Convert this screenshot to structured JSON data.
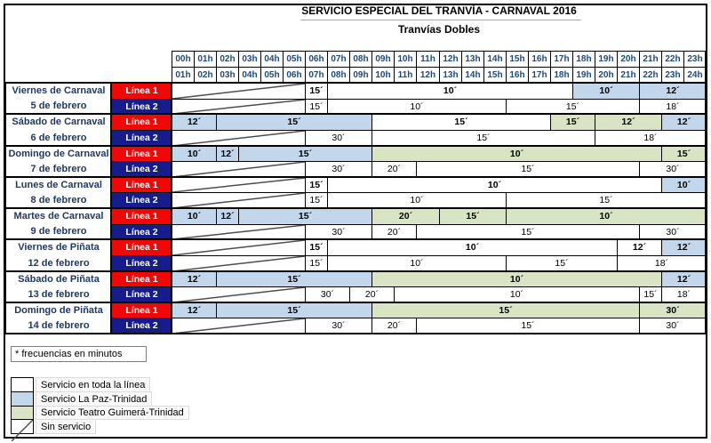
{
  "title": "SERVICIO ESPECIAL DEL TRANVÍA - CARNAVAL 2016",
  "subtitle": "Tranvías Dobles",
  "footnote": "* frecuencias en minutos",
  "hours": {
    "top": [
      "00h",
      "01h",
      "02h",
      "03h",
      "04h",
      "05h",
      "06h",
      "07h",
      "08h",
      "09h",
      "10h",
      "11h",
      "12h",
      "13h",
      "14h",
      "15h",
      "16h",
      "17h",
      "18h",
      "19h",
      "20h",
      "21h",
      "22h",
      "23h"
    ],
    "bottom": [
      "01h",
      "02h",
      "03h",
      "04h",
      "05h",
      "06h",
      "07h",
      "08h",
      "09h",
      "10h",
      "11h",
      "12h",
      "13h",
      "14h",
      "15h",
      "16h",
      "17h",
      "18h",
      "19h",
      "20h",
      "21h",
      "22h",
      "23h",
      "24h"
    ]
  },
  "line_labels": [
    "Línea 1",
    "Línea 2"
  ],
  "colors": {
    "line1_bg": "#f20707",
    "line2_bg": "#161c8c",
    "service_full": "#ffffff",
    "service_paz": "#c2d6ec",
    "service_guimera": "#d9e4c4",
    "no_service_line": "#4d4d4d",
    "hour_text": "#1f497d",
    "day_text": "#1f3864"
  },
  "days": [
    {
      "name": "Viernes de Carnaval",
      "date": "5 de febrero",
      "lines": [
        [
          [
            0,
            6,
            "none",
            ""
          ],
          [
            6,
            1,
            "full",
            "15´"
          ],
          [
            7,
            11,
            "full",
            "10´"
          ],
          [
            18,
            3,
            "paz",
            "10´"
          ],
          [
            21,
            3,
            "paz",
            "12´"
          ]
        ],
        [
          [
            0,
            6,
            "none",
            ""
          ],
          [
            6,
            1,
            "full",
            "15´"
          ],
          [
            7,
            8,
            "full",
            "10´"
          ],
          [
            15,
            6,
            "full",
            "15´"
          ],
          [
            21,
            3,
            "full",
            "18´"
          ]
        ]
      ]
    },
    {
      "name": "Sábado de Carnaval",
      "date": "6 de febrero",
      "lines": [
        [
          [
            0,
            2,
            "paz",
            "12´"
          ],
          [
            2,
            7,
            "paz",
            "15´"
          ],
          [
            9,
            8,
            "full",
            "15´"
          ],
          [
            17,
            2,
            "guimera",
            "15´"
          ],
          [
            19,
            3,
            "guimera",
            "12´"
          ],
          [
            22,
            2,
            "paz",
            "12´"
          ]
        ],
        [
          [
            0,
            6,
            "none",
            ""
          ],
          [
            6,
            3,
            "full",
            "30´"
          ],
          [
            9,
            10,
            "full",
            "15´"
          ],
          [
            19,
            5,
            "full",
            "18´"
          ]
        ]
      ]
    },
    {
      "name": "Domingo de Carnaval",
      "date": "7 de febrero",
      "lines": [
        [
          [
            0,
            2,
            "paz",
            "10´"
          ],
          [
            2,
            1,
            "paz",
            "12´"
          ],
          [
            3,
            6,
            "paz",
            "15´"
          ],
          [
            9,
            13,
            "guimera",
            "10´"
          ],
          [
            22,
            2,
            "guimera",
            "15´"
          ]
        ],
        [
          [
            0,
            6,
            "none",
            ""
          ],
          [
            6,
            3,
            "full",
            "30´"
          ],
          [
            9,
            2,
            "full",
            "20´"
          ],
          [
            11,
            10,
            "full",
            "15´"
          ],
          [
            21,
            3,
            "full",
            "30´"
          ]
        ]
      ]
    },
    {
      "name": "Lunes de Carnaval",
      "date": "8 de febrero",
      "lines": [
        [
          [
            0,
            6,
            "none",
            ""
          ],
          [
            6,
            1,
            "full",
            "15´"
          ],
          [
            7,
            15,
            "full",
            "10´"
          ],
          [
            22,
            2,
            "paz",
            "10´"
          ]
        ],
        [
          [
            0,
            6,
            "none",
            ""
          ],
          [
            6,
            1,
            "full",
            "15´"
          ],
          [
            7,
            8,
            "full",
            "10´"
          ],
          [
            15,
            9,
            "full",
            "15´"
          ]
        ]
      ]
    },
    {
      "name": "Martes de Carnaval",
      "date": "9 de febrero",
      "lines": [
        [
          [
            0,
            2,
            "paz",
            "10´"
          ],
          [
            2,
            1,
            "paz",
            "12´"
          ],
          [
            3,
            6,
            "paz",
            "15´"
          ],
          [
            9,
            3,
            "guimera",
            "20´"
          ],
          [
            12,
            3,
            "guimera",
            "15´"
          ],
          [
            15,
            9,
            "guimera",
            "10´"
          ]
        ],
        [
          [
            0,
            6,
            "none",
            ""
          ],
          [
            6,
            3,
            "full",
            "30´"
          ],
          [
            9,
            2,
            "full",
            "20´"
          ],
          [
            11,
            10,
            "full",
            "15´"
          ],
          [
            21,
            3,
            "full",
            "30´"
          ]
        ]
      ]
    },
    {
      "name": "Viernes de Piñata",
      "date": "12 de febrero",
      "lines": [
        [
          [
            0,
            6,
            "none",
            ""
          ],
          [
            6,
            1,
            "full",
            "15´"
          ],
          [
            7,
            13,
            "full",
            "10´"
          ],
          [
            20,
            2,
            "full",
            "12´"
          ],
          [
            22,
            2,
            "paz",
            "12´"
          ]
        ],
        [
          [
            0,
            6,
            "none",
            ""
          ],
          [
            6,
            1,
            "full",
            "15´"
          ],
          [
            7,
            8,
            "full",
            "10´"
          ],
          [
            15,
            5,
            "full",
            "15´"
          ],
          [
            20,
            4,
            "full",
            "18´"
          ]
        ]
      ]
    },
    {
      "name": "Sábado de Piñata",
      "date": "13 de febrero",
      "lines": [
        [
          [
            0,
            2,
            "paz",
            "12´"
          ],
          [
            2,
            7,
            "paz",
            "15´"
          ],
          [
            9,
            13,
            "guimera",
            "10´"
          ],
          [
            22,
            2,
            "paz",
            "12´"
          ]
        ],
        [
          [
            0,
            6,
            "none",
            ""
          ],
          [
            6,
            2,
            "full",
            "30´"
          ],
          [
            8,
            2,
            "full",
            "20´"
          ],
          [
            10,
            11,
            "full",
            "10´"
          ],
          [
            21,
            1,
            "full",
            "15´"
          ],
          [
            22,
            2,
            "full",
            "18´"
          ]
        ]
      ]
    },
    {
      "name": "Domingo de Piñata",
      "date": "14 de febrero",
      "lines": [
        [
          [
            0,
            2,
            "paz",
            "12´"
          ],
          [
            2,
            7,
            "paz",
            "15´"
          ],
          [
            9,
            12,
            "guimera",
            "15´"
          ],
          [
            21,
            3,
            "guimera",
            "30´"
          ]
        ],
        [
          [
            0,
            6,
            "none",
            ""
          ],
          [
            6,
            3,
            "full",
            "30´"
          ],
          [
            9,
            2,
            "full",
            "20´"
          ],
          [
            11,
            10,
            "full",
            "15´"
          ],
          [
            21,
            3,
            "full",
            "30´"
          ]
        ]
      ]
    }
  ],
  "legend": [
    {
      "swatch": "full",
      "label": "Servicio en toda la línea"
    },
    {
      "swatch": "paz",
      "label": "Servicio La Paz-Trinidad"
    },
    {
      "swatch": "guimera",
      "label": "Servicio Teatro Guimerá-Trinidad"
    },
    {
      "swatch": "none",
      "label": "Sin servicio"
    }
  ]
}
